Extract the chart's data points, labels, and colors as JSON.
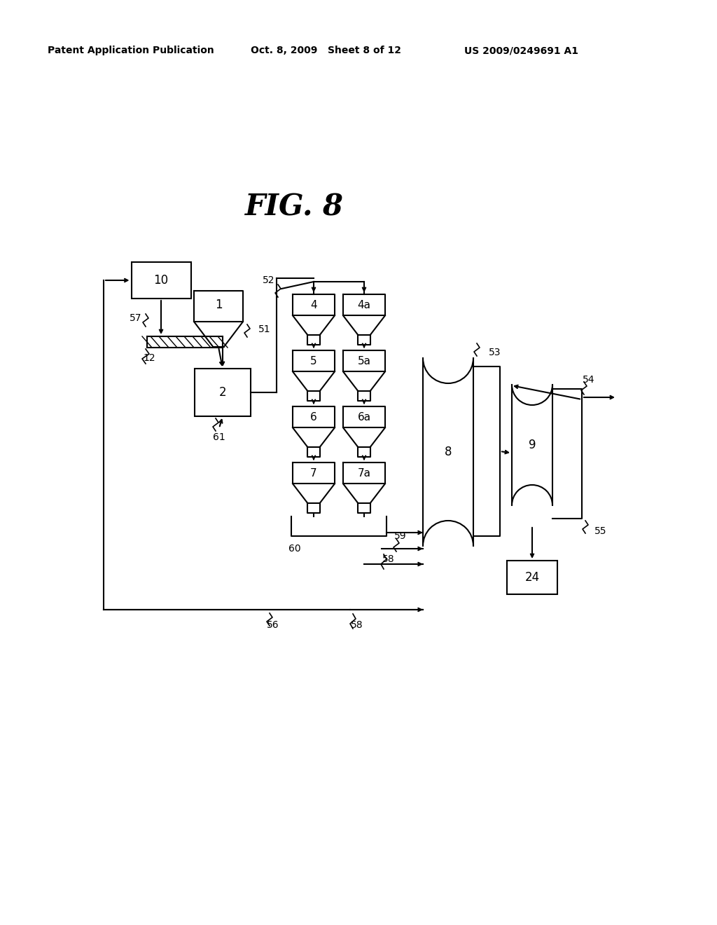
{
  "title": "FIG. 8",
  "header_left": "Patent Application Publication",
  "header_mid": "Oct. 8, 2009   Sheet 8 of 12",
  "header_right": "US 2009/0249691 A1",
  "bg_color": "#ffffff",
  "line_color": "#000000"
}
